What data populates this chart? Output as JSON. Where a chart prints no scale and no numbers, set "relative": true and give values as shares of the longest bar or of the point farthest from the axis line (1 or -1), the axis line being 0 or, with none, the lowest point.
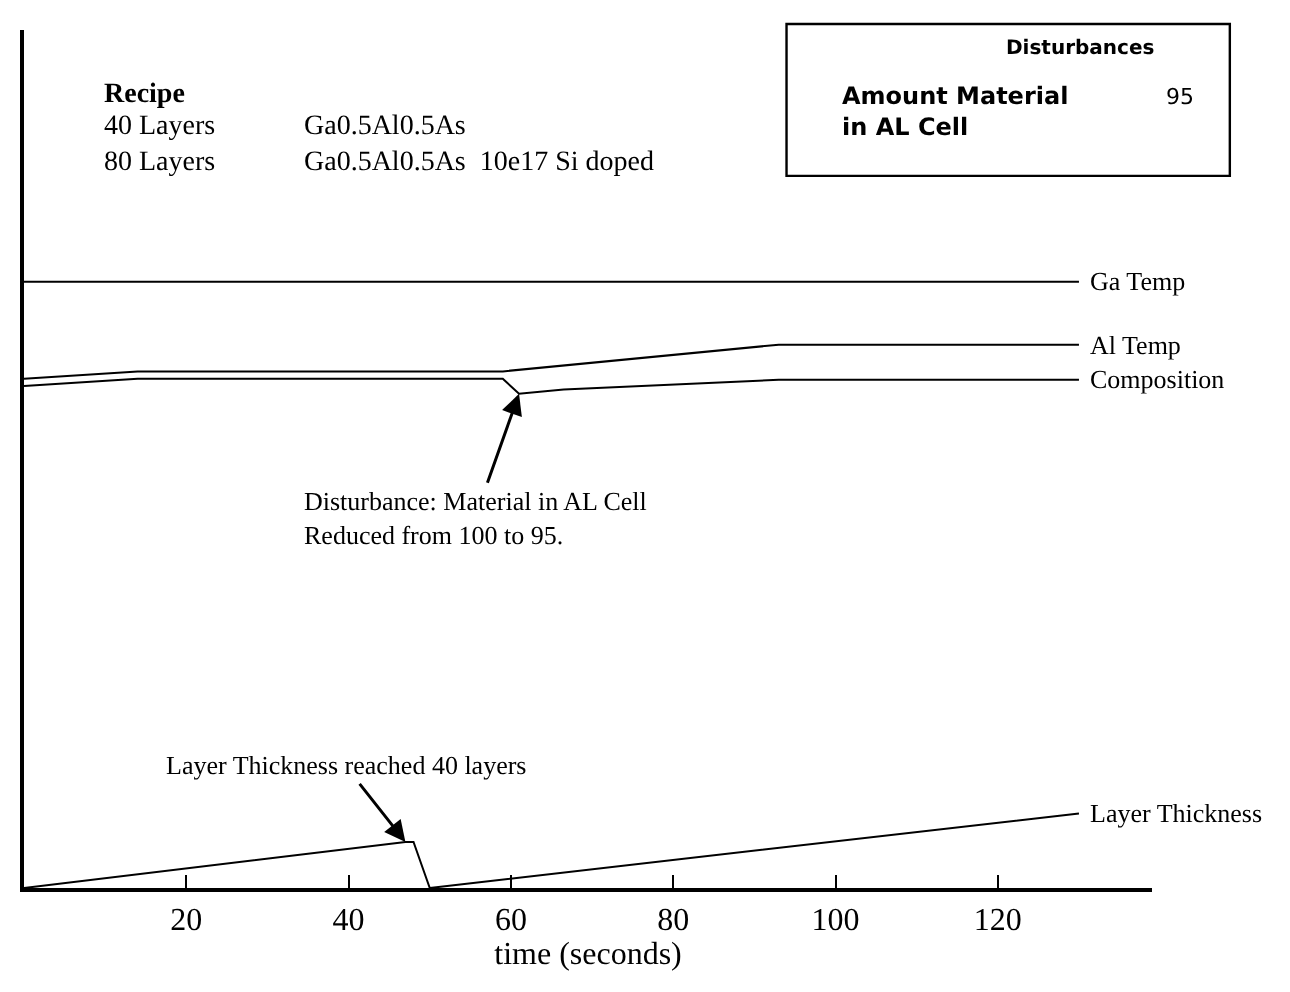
{
  "chart_data": {
    "type": "line",
    "relative": true,
    "xlabel": "time (seconds)",
    "xlim": [
      0,
      139
    ],
    "xticks": [
      20,
      40,
      60,
      80,
      100,
      120
    ],
    "grid": false,
    "legend": false,
    "marker": "none",
    "line_style": "solid",
    "series": [
      {
        "name": "Ga Temp",
        "color": "#000000",
        "x": [
          0,
          130
        ],
        "values": [
          1,
          1
        ]
      },
      {
        "name": "Al Temp",
        "color": "#000000",
        "x": [
          0,
          14,
          59,
          93,
          130
        ],
        "values": [
          0.84,
          0.852,
          0.852,
          0.896,
          0.896
        ]
      },
      {
        "name": "Composition",
        "color": "#000000",
        "x": [
          0,
          14,
          59,
          61,
          66.5,
          93,
          130
        ],
        "values": [
          0.828,
          0.84,
          0.84,
          0.815,
          0.822,
          0.838,
          0.838
        ]
      },
      {
        "name": "Layer Thickness",
        "color": "#000000",
        "x": [
          0,
          47,
          48,
          50,
          130
        ],
        "values": [
          0,
          0.076,
          0.076,
          0,
          0.123
        ]
      }
    ],
    "annotations": [
      "Recipe",
      "40 Layers",
      "80 Layers",
      "Ga0.5Al0.5As",
      "Ga0.5Al0.5As  10e17 Si doped",
      "Disturbances",
      "Amount Material\nin AL Cell",
      "95",
      {
        "text": "Disturbance: Material in AL Cell\nReduced from 100 to 95.",
        "x": 61,
        "y": 0.815
      },
      {
        "text": "Layer Thickness reached 40 layers",
        "x": 47,
        "y": 0.076
      }
    ]
  }
}
